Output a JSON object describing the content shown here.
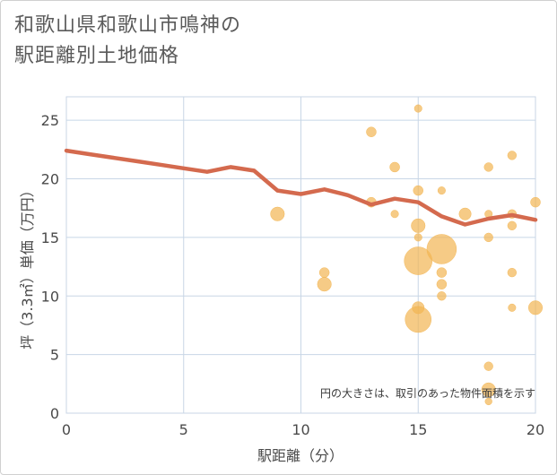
{
  "title_line1": "和歌山県和歌山市鳴神の",
  "title_line2": "駅距離別土地価格",
  "chart_data": {
    "type": "scatter",
    "xlabel": "駅距離（分）",
    "ylabel": "坪（3.3㎡）単価（万円）",
    "xlim": [
      0,
      20
    ],
    "ylim": [
      0,
      27
    ],
    "xticks": [
      0,
      5,
      10,
      15,
      20
    ],
    "yticks": [
      0,
      5,
      10,
      15,
      20,
      25
    ],
    "note": "円の大きさは、取引のあった物件面積を示す",
    "colors": {
      "bubble": "#f2b552",
      "trend": "#d46a4e",
      "grid": "#c8d6e6"
    },
    "bubbles": [
      {
        "x": 9,
        "y": 17,
        "size": 2
      },
      {
        "x": 11,
        "y": 12,
        "size": 1
      },
      {
        "x": 11,
        "y": 11,
        "size": 2
      },
      {
        "x": 13,
        "y": 24,
        "size": 1
      },
      {
        "x": 13,
        "y": 18,
        "size": 1
      },
      {
        "x": 14,
        "y": 21,
        "size": 1
      },
      {
        "x": 14,
        "y": 17,
        "size": 0.6
      },
      {
        "x": 15,
        "y": 26,
        "size": 0.6
      },
      {
        "x": 15,
        "y": 19,
        "size": 1
      },
      {
        "x": 15,
        "y": 16,
        "size": 2
      },
      {
        "x": 15,
        "y": 15,
        "size": 0.6
      },
      {
        "x": 15,
        "y": 13,
        "size": 8
      },
      {
        "x": 15,
        "y": 9,
        "size": 1.5
      },
      {
        "x": 15,
        "y": 8,
        "size": 7
      },
      {
        "x": 16,
        "y": 19,
        "size": 0.6
      },
      {
        "x": 16,
        "y": 14,
        "size": 9
      },
      {
        "x": 16,
        "y": 12,
        "size": 1
      },
      {
        "x": 16,
        "y": 11,
        "size": 1
      },
      {
        "x": 16,
        "y": 10,
        "size": 0.8
      },
      {
        "x": 17,
        "y": 17,
        "size": 1.5
      },
      {
        "x": 18,
        "y": 21,
        "size": 0.8
      },
      {
        "x": 18,
        "y": 17,
        "size": 0.6
      },
      {
        "x": 18,
        "y": 15,
        "size": 0.8
      },
      {
        "x": 18,
        "y": 4,
        "size": 0.8
      },
      {
        "x": 18,
        "y": 2,
        "size": 2
      },
      {
        "x": 18,
        "y": 1,
        "size": 0.5
      },
      {
        "x": 19,
        "y": 22,
        "size": 0.8
      },
      {
        "x": 19,
        "y": 17,
        "size": 0.8
      },
      {
        "x": 19,
        "y": 16,
        "size": 0.8
      },
      {
        "x": 19,
        "y": 12,
        "size": 0.8
      },
      {
        "x": 19,
        "y": 9,
        "size": 0.6
      },
      {
        "x": 20,
        "y": 18,
        "size": 1
      },
      {
        "x": 20,
        "y": 9,
        "size": 2
      }
    ],
    "trend": [
      {
        "x": 0,
        "y": 22.4
      },
      {
        "x": 1,
        "y": 22.1
      },
      {
        "x": 2,
        "y": 21.8
      },
      {
        "x": 3,
        "y": 21.5
      },
      {
        "x": 4,
        "y": 21.2
      },
      {
        "x": 5,
        "y": 20.9
      },
      {
        "x": 6,
        "y": 20.6
      },
      {
        "x": 7,
        "y": 21.0
      },
      {
        "x": 8,
        "y": 20.7
      },
      {
        "x": 9,
        "y": 19.0
      },
      {
        "x": 10,
        "y": 18.7
      },
      {
        "x": 11,
        "y": 19.1
      },
      {
        "x": 12,
        "y": 18.6
      },
      {
        "x": 13,
        "y": 17.8
      },
      {
        "x": 14,
        "y": 18.3
      },
      {
        "x": 15,
        "y": 18.0
      },
      {
        "x": 16,
        "y": 16.8
      },
      {
        "x": 17,
        "y": 16.1
      },
      {
        "x": 18,
        "y": 16.6
      },
      {
        "x": 19,
        "y": 16.9
      },
      {
        "x": 20,
        "y": 16.5
      }
    ]
  }
}
